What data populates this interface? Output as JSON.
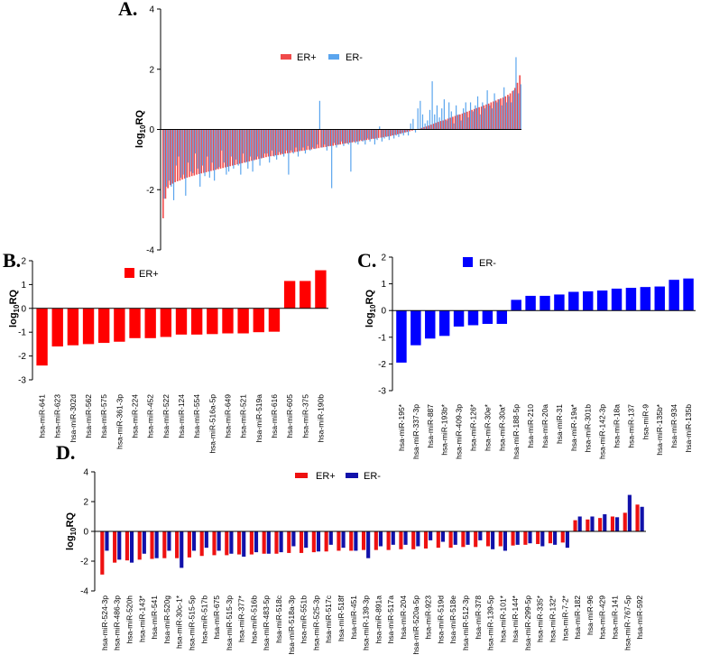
{
  "colors": {
    "er_pos_a": "#f04a4a",
    "er_neg_a": "#5aa5ee",
    "red": "#ff0000",
    "blue": "#0000ff",
    "er_pos_d": "#ee1111",
    "er_neg_d": "#1111aa"
  },
  "chart_data": [
    {
      "panel": "A.",
      "type": "bar",
      "title": "",
      "ylabel_main": "log",
      "ylabel_sub": "10",
      "ylabel_tail": "RQ",
      "ylim": [
        -4,
        4
      ],
      "yticks": [
        "4",
        "2",
        "0",
        "-2",
        "-4"
      ],
      "legend": [
        "ER+",
        "ER-"
      ],
      "legend_position": "top-center",
      "n_bars": 150,
      "series": [
        {
          "name": "ER+",
          "values": [
            -2.95,
            -2.3,
            -1.95,
            -1.85,
            -1.8,
            -1.75,
            -1.72,
            -1.7,
            -1.66,
            -1.63,
            -1.6,
            -1.58,
            -1.55,
            -1.53,
            -1.5,
            -1.48,
            -1.46,
            -1.44,
            -1.42,
            -1.4,
            -1.38,
            -1.36,
            -1.34,
            -1.32,
            -1.3,
            -1.28,
            -1.26,
            -1.24,
            -1.22,
            -1.2,
            -1.18,
            -1.16,
            -1.14,
            -1.12,
            -1.1,
            -1.08,
            -1.06,
            -1.04,
            -1.02,
            -1.0,
            -0.98,
            -0.96,
            -0.94,
            -0.92,
            -0.9,
            -0.89,
            -0.88,
            -0.86,
            -0.85,
            -0.84,
            -0.82,
            -0.8,
            -0.79,
            -0.78,
            -0.76,
            -0.75,
            -0.74,
            -0.72,
            -0.71,
            -0.7,
            -0.68,
            -0.67,
            -0.66,
            -0.64,
            -0.63,
            -0.62,
            -0.6,
            -0.59,
            -0.58,
            -0.56,
            -0.55,
            -0.54,
            -0.52,
            -0.51,
            -0.5,
            -0.48,
            -0.47,
            -0.46,
            -0.44,
            -0.43,
            -0.42,
            -0.4,
            -0.39,
            -0.38,
            -0.36,
            -0.35,
            -0.34,
            -0.32,
            -0.31,
            -0.3,
            -0.28,
            -0.27,
            -0.26,
            -0.24,
            -0.23,
            -0.22,
            -0.2,
            -0.18,
            -0.16,
            -0.14,
            -0.12,
            -0.1,
            -0.08,
            -0.06,
            -0.04,
            -0.02,
            0.0,
            0.02,
            0.05,
            0.08,
            0.1,
            0.13,
            0.16,
            0.19,
            0.22,
            0.25,
            0.28,
            0.3,
            0.33,
            0.36,
            0.39,
            0.42,
            0.45,
            0.48,
            0.5,
            0.53,
            0.56,
            0.59,
            0.62,
            0.65,
            0.68,
            0.71,
            0.74,
            0.76,
            0.8,
            0.83,
            0.86,
            0.9,
            0.93,
            0.96,
            1.0,
            1.03,
            1.06,
            1.1,
            1.15,
            1.2,
            1.28,
            1.38,
            1.55,
            1.8
          ]
        },
        {
          "name": "ER-",
          "values": [
            -2.3,
            -1.9,
            -1.7,
            -1.9,
            -2.35,
            -1.2,
            -0.9,
            -1.6,
            -1.5,
            -2.2,
            -1.1,
            -1.4,
            -1.45,
            -0.8,
            -1.3,
            -1.9,
            -1.2,
            -1.55,
            -0.9,
            -1.6,
            -1.1,
            -1.7,
            -1.3,
            -1.25,
            -0.7,
            -1.1,
            -1.5,
            -1.4,
            -0.9,
            -1.3,
            -1.0,
            -1.2,
            -1.5,
            -0.8,
            -1.1,
            -1.3,
            -0.9,
            -1.4,
            -1.0,
            -0.9,
            -1.2,
            -0.95,
            -0.8,
            -0.8,
            -1.1,
            -0.7,
            -0.9,
            -1.0,
            -0.75,
            -0.8,
            -0.9,
            -0.7,
            -1.5,
            -0.7,
            -0.8,
            -0.6,
            -0.9,
            -0.7,
            -0.6,
            -0.8,
            -0.55,
            -0.7,
            -0.6,
            -0.65,
            -0.5,
            0.95,
            -0.6,
            -0.5,
            -0.7,
            -0.55,
            -1.95,
            -0.45,
            -0.6,
            -0.5,
            -0.4,
            -0.55,
            -0.45,
            -0.5,
            -1.4,
            -0.4,
            -0.45,
            -0.5,
            -0.35,
            -0.4,
            -0.5,
            -0.3,
            -0.4,
            -0.3,
            -0.5,
            -0.35,
            0.1,
            -0.4,
            -0.3,
            -0.25,
            -0.35,
            -0.2,
            -0.3,
            -0.2,
            -0.25,
            -0.15,
            -0.2,
            -0.1,
            -0.2,
            0.2,
            0.35,
            -0.1,
            0.7,
            0.95,
            0.5,
            0.2,
            0.3,
            0.65,
            1.6,
            0.5,
            0.8,
            0.4,
            0.7,
            1.0,
            0.3,
            0.9,
            0.6,
            0.2,
            0.8,
            0.5,
            0.3,
            0.7,
            0.9,
            0.4,
            0.9,
            0.6,
            0.8,
            1.1,
            0.5,
            0.9,
            0.7,
            1.3,
            0.8,
            0.7,
            1.2,
            0.9,
            1.0,
            0.8,
            1.4,
            0.9,
            1.1,
            0.9,
            1.3,
            2.4,
            1.2,
            1.5
          ]
        }
      ]
    },
    {
      "panel": "B.",
      "type": "bar",
      "ylabel_main": "log",
      "ylabel_sub": "10",
      "ylabel_tail": "RQ",
      "ylim": [
        -3,
        2
      ],
      "yticks": [
        "2",
        "1",
        "0",
        "-1",
        "-2",
        "-3"
      ],
      "legend": [
        "ER+"
      ],
      "legend_position": "top-center",
      "categories": [
        "hsa-miR-641",
        "hsa-miR-623",
        "hsa-miR-302d",
        "hsa-miR-562",
        "hsa-miR-575",
        "hsa-miR-361-3p",
        "hsa-miR-224",
        "hsa-miR-452",
        "hsa-miR-522",
        "hsa-miR-124",
        "hsa-miR-554",
        "hsa-miR-516a-5p",
        "hsa-miR-649",
        "hsa-miR-521",
        "hsa-miR-519a",
        "hsa-miR-616",
        "hsa-miR-605",
        "hsa-miR-375",
        "hsa-miR-190b"
      ],
      "series": [
        {
          "name": "ER+",
          "values": [
            -2.4,
            -1.6,
            -1.55,
            -1.5,
            -1.45,
            -1.4,
            -1.25,
            -1.25,
            -1.2,
            -1.1,
            -1.1,
            -1.08,
            -1.05,
            -1.05,
            -1.0,
            -0.98,
            1.15,
            1.15,
            1.6
          ]
        }
      ]
    },
    {
      "panel": "C.",
      "type": "bar",
      "ylabel_main": "log",
      "ylabel_sub": "10",
      "ylabel_tail": "RQ",
      "ylim": [
        -3,
        2
      ],
      "yticks": [
        "2",
        "1",
        "0",
        "-1",
        "-2",
        "-3"
      ],
      "legend": [
        "ER-"
      ],
      "legend_position": "top-center",
      "categories": [
        "hsa-miR-195*",
        "hsa-miR-337-3p",
        "hsa-miR-887",
        "hsa-miR-193b*",
        "hsa-miR-409-3p",
        "hsa-miR-126*",
        "hsa-miR-30e*",
        "hsa-miR-30a*",
        "hsa-miR-188-5p",
        "hsa-miR-210",
        "hsa-miR-20a",
        "hsa-miR-31",
        "hsa-miR-19a*",
        "hsa-miR-301b",
        "hsa-miR-142-3p",
        "hsa-miR-18a",
        "hsa-miR-137",
        "hsa-miR-9",
        "hsa-miR-135b*",
        "hsa-miR-934",
        "hsa-miR-135b"
      ],
      "series": [
        {
          "name": "ER-",
          "values": [
            -1.95,
            -1.3,
            -1.05,
            -0.95,
            -0.6,
            -0.55,
            -0.5,
            -0.5,
            0.4,
            0.55,
            0.55,
            0.6,
            0.7,
            0.72,
            0.75,
            0.82,
            0.85,
            0.88,
            0.9,
            1.15,
            1.2
          ]
        }
      ]
    },
    {
      "panel": "D.",
      "type": "bar",
      "ylabel_main": "log",
      "ylabel_sub": "10",
      "ylabel_tail": "RQ",
      "ylim": [
        -4,
        4
      ],
      "yticks": [
        "4",
        "2",
        "0",
        "-2",
        "-4"
      ],
      "legend": [
        "ER+",
        "ER-"
      ],
      "legend_position": "top-center",
      "categories": [
        "hsa-miR-524-3p",
        "hsa-miR-486-3p",
        "hsa-miR-520h",
        "hsa-miR-143*",
        "hsa-miR-541",
        "hsa-miR-520g",
        "hsa-miR-30c-1*",
        "hsa-miR-515-5p",
        "hsa-miR-517b",
        "hsa-miR-675",
        "hsa-miR-515-3p",
        "hsa-miR-377*",
        "hsa-miR-516b",
        "hsa-miR-483-5p",
        "hsa-miR-518c",
        "hsa-miR-518a-3p",
        "hsa-miR-551b",
        "hsa-miR-525-3p",
        "hsa-miR-517c",
        "hsa-miR-518f",
        "hsa-miR-451",
        "hsa-miR-139-3p",
        "hsa-miR-891a",
        "hsa-miR-517a",
        "hsa-miR-204",
        "hsa-miR-520a-5p",
        "hsa-miR-923",
        "hsa-miR-519d",
        "hsa-miR-518e",
        "hsa-miR-512-3p",
        "hsa-miR-378",
        "hsa-miR-139-5p",
        "hsa-miR-101*",
        "hsa-miR-144*",
        "hsa-miR-299-5p",
        "hsa-miR-335*",
        "hsa-miR-132*",
        "hsa-miR-7-2*",
        "hsa-miR-182",
        "hsa-miR-96",
        "hsa-miR-429",
        "hsa-miR-141",
        "hsa-miR-767-5p",
        "hsa-miR-592"
      ],
      "series": [
        {
          "name": "ER+",
          "values": [
            -2.9,
            -2.1,
            -1.95,
            -1.9,
            -1.85,
            -1.8,
            -1.8,
            -1.75,
            -1.65,
            -1.6,
            -1.6,
            -1.55,
            -1.55,
            -1.5,
            -1.5,
            -1.45,
            -1.45,
            -1.4,
            -1.35,
            -1.3,
            -1.3,
            -1.25,
            -1.25,
            -1.25,
            -1.2,
            -1.2,
            -1.15,
            -1.1,
            -1.1,
            -1.05,
            -1.05,
            -1.0,
            -1.0,
            -0.95,
            -0.9,
            -0.85,
            -0.8,
            -0.75,
            0.75,
            0.8,
            0.9,
            1.0,
            1.25,
            1.8
          ]
        },
        {
          "name": "ER-",
          "values": [
            -1.3,
            -1.9,
            -2.1,
            -1.5,
            -1.8,
            -1.3,
            -2.45,
            -1.3,
            -1.1,
            -1.3,
            -1.5,
            -1.7,
            -1.4,
            -1.5,
            -1.4,
            -1.0,
            -1.1,
            -1.35,
            -0.9,
            -1.1,
            -1.3,
            -1.8,
            -1.0,
            -0.9,
            -0.9,
            -1.0,
            -0.6,
            -0.7,
            -0.9,
            -0.9,
            -0.6,
            -1.2,
            -1.3,
            -0.9,
            -0.8,
            -1.0,
            -0.9,
            -1.1,
            1.0,
            1.0,
            1.15,
            0.95,
            2.45,
            1.65
          ]
        }
      ]
    }
  ]
}
